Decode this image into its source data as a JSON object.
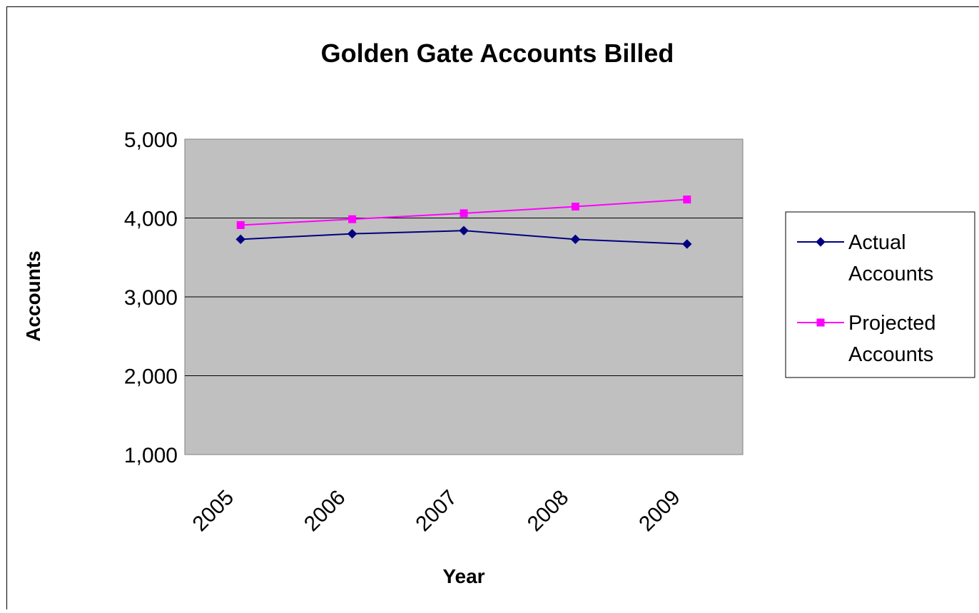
{
  "chart_data": {
    "type": "line",
    "title": "Golden Gate Accounts Billed",
    "xlabel": "Year",
    "ylabel": "Accounts",
    "categories": [
      "2005",
      "2006",
      "2007",
      "2008",
      "2009"
    ],
    "ylim": [
      1000,
      5000
    ],
    "yticks": [
      1000,
      2000,
      3000,
      4000,
      5000
    ],
    "ytick_labels": [
      "1,000",
      "2,000",
      "3,000",
      "4,000",
      "5,000"
    ],
    "grid": true,
    "legend_position": "right",
    "plot_background": "#c0c0c0",
    "series": [
      {
        "name": "Actual Accounts",
        "legend_lines": [
          "Actual",
          "Accounts"
        ],
        "values": [
          3730,
          3800,
          3840,
          3730,
          3670
        ],
        "color": "#000080",
        "marker": "diamond"
      },
      {
        "name": "Projected Accounts",
        "legend_lines": [
          "Projected",
          "Accounts"
        ],
        "values": [
          3910,
          3985,
          4060,
          4145,
          4235
        ],
        "color": "#ff00ff",
        "marker": "square"
      }
    ]
  }
}
